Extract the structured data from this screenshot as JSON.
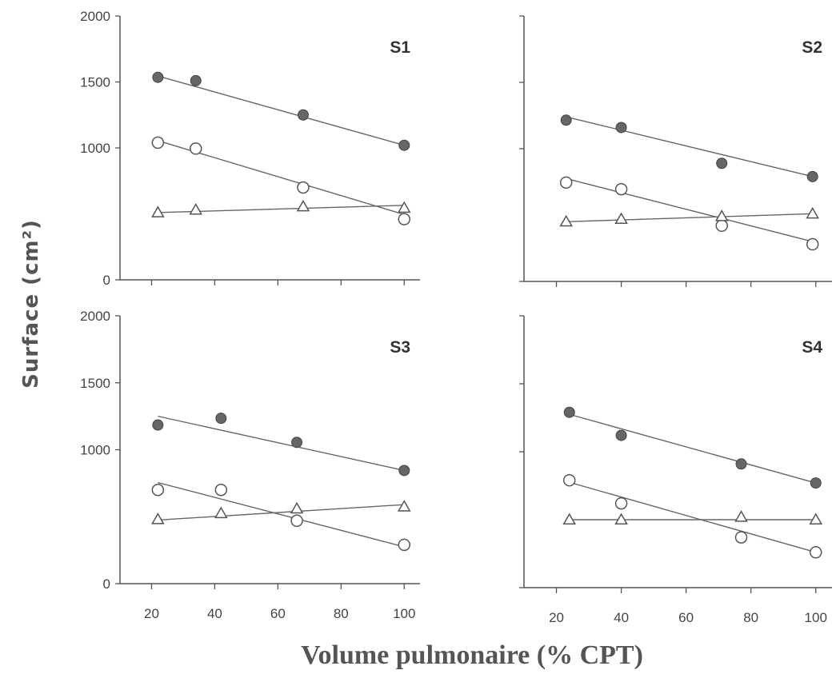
{
  "ylabel": "Surface (cm²)",
  "xlabel": "Volume pulmonaire (% CPT)",
  "chart_data": [
    {
      "type": "scatter",
      "title": "S1",
      "xlim": [
        10,
        105
      ],
      "ylim": [
        0,
        2000
      ],
      "yticks": [
        "0",
        "1000",
        "1500",
        "2000"
      ],
      "yticks_values": [
        0,
        1000,
        1500,
        2000
      ],
      "xticks": [],
      "xticks_values": [
        20,
        40,
        60,
        80,
        100
      ],
      "series": [
        {
          "marker": "filled-circle",
          "x": [
            22,
            34,
            68,
            100
          ],
          "y": [
            1535,
            1510,
            1250,
            1020
          ],
          "fit": [
            [
              22,
              1545
            ],
            [
              100,
              1020
            ]
          ]
        },
        {
          "marker": "open-circle",
          "x": [
            22,
            34,
            68,
            100
          ],
          "y": [
            1040,
            995,
            700,
            460
          ],
          "fit": [
            [
              22,
              1055
            ],
            [
              100,
              495
            ]
          ]
        },
        {
          "marker": "open-triangle",
          "x": [
            22,
            34,
            68,
            100
          ],
          "y": [
            510,
            530,
            555,
            545
          ],
          "fit": [
            [
              22,
              510
            ],
            [
              100,
              565
            ]
          ]
        }
      ]
    },
    {
      "type": "scatter",
      "title": "S2",
      "xlim": [
        10,
        105
      ],
      "ylim": [
        0,
        2000
      ],
      "yticks": [],
      "yticks_values": [
        0,
        1000,
        1500,
        2000
      ],
      "xticks": [],
      "xticks_values": [
        20,
        40,
        60,
        80,
        100
      ],
      "series": [
        {
          "marker": "filled-circle",
          "x": [
            23,
            40,
            71,
            99
          ],
          "y": [
            1215,
            1160,
            890,
            790
          ],
          "fit": [
            [
              23,
              1240
            ],
            [
              99,
              790
            ]
          ]
        },
        {
          "marker": "open-circle",
          "x": [
            23,
            40,
            71,
            99
          ],
          "y": [
            745,
            695,
            420,
            280
          ],
          "fit": [
            [
              23,
              775
            ],
            [
              99,
              300
            ]
          ]
        },
        {
          "marker": "open-triangle",
          "x": [
            23,
            40,
            71,
            99
          ],
          "y": [
            450,
            470,
            490,
            510
          ],
          "fit": [
            [
              23,
              450
            ],
            [
              99,
              510
            ]
          ]
        }
      ]
    },
    {
      "type": "scatter",
      "title": "S3",
      "xlim": [
        10,
        105
      ],
      "ylim": [
        0,
        2000
      ],
      "yticks": [
        "0",
        "1000",
        "1500",
        "2000"
      ],
      "yticks_values": [
        0,
        1000,
        1500,
        2000
      ],
      "xticks": [
        "20",
        "40",
        "60",
        "80",
        "100"
      ],
      "xticks_values": [
        20,
        40,
        60,
        80,
        100
      ],
      "series": [
        {
          "marker": "filled-circle",
          "x": [
            22,
            42,
            66,
            100
          ],
          "y": [
            1185,
            1235,
            1055,
            845
          ],
          "fit": [
            [
              22,
              1250
            ],
            [
              100,
              845
            ]
          ]
        },
        {
          "marker": "open-circle",
          "x": [
            22,
            42,
            66,
            100
          ],
          "y": [
            700,
            700,
            470,
            290
          ],
          "fit": [
            [
              22,
              755
            ],
            [
              100,
              275
            ]
          ]
        },
        {
          "marker": "open-triangle",
          "x": [
            22,
            42,
            66,
            100
          ],
          "y": [
            480,
            525,
            560,
            575
          ],
          "fit": [
            [
              22,
              475
            ],
            [
              100,
              590
            ]
          ]
        }
      ]
    },
    {
      "type": "scatter",
      "title": "S4",
      "xlim": [
        10,
        105
      ],
      "ylim": [
        0,
        2000
      ],
      "yticks": [],
      "yticks_values": [
        0,
        1000,
        1500,
        2000
      ],
      "xticks": [
        "20",
        "40",
        "60",
        "80",
        "100"
      ],
      "xticks_values": [
        20,
        40,
        60,
        80,
        100
      ],
      "series": [
        {
          "marker": "filled-circle",
          "x": [
            24,
            40,
            77,
            100
          ],
          "y": [
            1290,
            1120,
            910,
            770
          ],
          "fit": [
            [
              24,
              1275
            ],
            [
              100,
              770
            ]
          ]
        },
        {
          "marker": "open-circle",
          "x": [
            24,
            40,
            77,
            100
          ],
          "y": [
            790,
            620,
            370,
            260
          ],
          "fit": [
            [
              24,
              775
            ],
            [
              100,
              260
            ]
          ]
        },
        {
          "marker": "open-triangle",
          "x": [
            24,
            40,
            77,
            100
          ],
          "y": [
            500,
            500,
            520,
            500
          ],
          "fit": [
            [
              24,
              500
            ],
            [
              100,
              500
            ]
          ]
        }
      ]
    }
  ]
}
